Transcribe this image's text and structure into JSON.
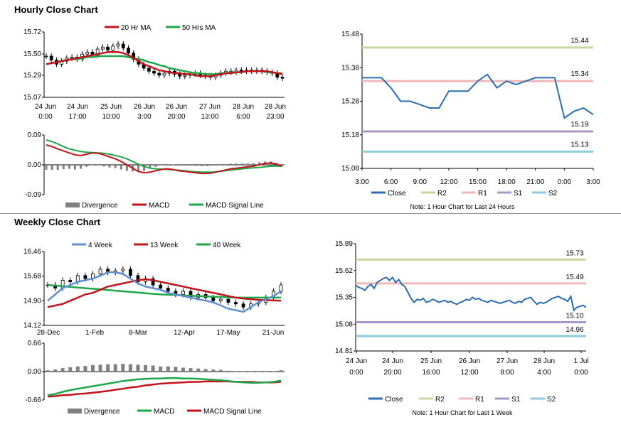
{
  "sections": {
    "hourly_title": "Hourly Close Chart",
    "weekly_title": "Weekly Close Chart"
  },
  "colors": {
    "ma20": "#c0141a",
    "ma50": "#1fa64a",
    "close": "#2a6db0",
    "r2": "#c6d9a0",
    "r1": "#f0b8b8",
    "s1": "#a898c8",
    "s2": "#8ccbdc",
    "divergence": "#808080",
    "ma4": "#5f8fd0"
  },
  "chart_data": [
    {
      "id": "hourly_price",
      "type": "candlestick",
      "legend": [
        "20 Hr MA",
        "50 Hrs MA"
      ],
      "y_ticks": [
        "15.72",
        "15.50",
        "15.29",
        "15.07"
      ],
      "ylim": [
        15.07,
        15.72
      ],
      "x_ticks": [
        [
          "24 Jun",
          "0:00"
        ],
        [
          "24 Jun",
          "17:00"
        ],
        [
          "25 Jun",
          "10:00"
        ],
        [
          "26 Jun",
          "3:00"
        ],
        [
          "26 Jun",
          "20:00"
        ],
        [
          "27 Jun",
          "13:00"
        ],
        [
          "28 Jun",
          "6:00"
        ],
        [
          "28 Jun",
          "23:00"
        ]
      ],
      "close": [
        15.48,
        15.44,
        15.4,
        15.43,
        15.46,
        15.47,
        15.45,
        15.5,
        15.52,
        15.49,
        15.55,
        15.57,
        15.54,
        15.58,
        15.6,
        15.56,
        15.51,
        15.45,
        15.4,
        15.36,
        15.33,
        15.31,
        15.29,
        15.31,
        15.33,
        15.3,
        15.28,
        15.29,
        15.3,
        15.31,
        15.29,
        15.28,
        15.27,
        15.29,
        15.31,
        15.33,
        15.32,
        15.34,
        15.33,
        15.34,
        15.33,
        15.34,
        15.33,
        15.32,
        15.31,
        15.27,
        15.26
      ],
      "ma20": [
        15.4,
        15.41,
        15.42,
        15.43,
        15.44,
        15.45,
        15.46,
        15.47,
        15.48,
        15.49,
        15.5,
        15.51,
        15.52,
        15.52,
        15.52,
        15.51,
        15.49,
        15.46,
        15.43,
        15.4,
        15.38,
        15.36,
        15.34,
        15.33,
        15.32,
        15.31,
        15.31,
        15.3,
        15.3,
        15.29,
        15.28,
        15.28,
        15.28,
        15.29,
        15.3,
        15.31,
        15.31,
        15.32,
        15.32,
        15.33,
        15.33,
        15.33,
        15.33,
        15.33,
        15.32,
        15.31,
        15.3
      ],
      "ma50": [
        15.4,
        15.41,
        15.42,
        15.43,
        15.44,
        15.45,
        15.45,
        15.46,
        15.47,
        15.47,
        15.48,
        15.48,
        15.48,
        15.48,
        15.48,
        15.48,
        15.47,
        15.46,
        15.45,
        15.44,
        15.42,
        15.41,
        15.39,
        15.38,
        15.36,
        15.35,
        15.34,
        15.33,
        15.32,
        15.31,
        15.31,
        15.3,
        15.3,
        15.3,
        15.31,
        15.31,
        15.32,
        15.32,
        15.32,
        15.33,
        15.33,
        15.33,
        15.33,
        15.32,
        15.32,
        15.31,
        15.31
      ]
    },
    {
      "id": "hourly_macd",
      "type": "line",
      "legend": [
        "Divergence",
        "MACD",
        "MACD Signal Line"
      ],
      "y_ticks": [
        "0.09",
        "0.00",
        "-0.09"
      ],
      "ylim": [
        -0.09,
        0.09
      ],
      "macd": [
        0.06,
        0.055,
        0.048,
        0.042,
        0.036,
        0.03,
        0.028,
        0.032,
        0.036,
        0.035,
        0.03,
        0.024,
        0.018,
        0.01,
        0.0,
        -0.01,
        -0.02,
        -0.024,
        -0.022,
        -0.018,
        -0.014,
        -0.012,
        -0.014,
        -0.018,
        -0.02,
        -0.022,
        -0.024,
        -0.026,
        -0.026,
        -0.024,
        -0.02,
        -0.016,
        -0.012,
        -0.01,
        -0.008,
        -0.006,
        -0.004,
        0.0,
        0.004,
        0.006,
        0.002,
        -0.004
      ],
      "signal": [
        0.075,
        0.07,
        0.063,
        0.055,
        0.048,
        0.044,
        0.04,
        0.038,
        0.037,
        0.036,
        0.035,
        0.032,
        0.028,
        0.024,
        0.018,
        0.01,
        0.002,
        -0.005,
        -0.01,
        -0.012,
        -0.013,
        -0.014,
        -0.015,
        -0.016,
        -0.018,
        -0.02,
        -0.021,
        -0.022,
        -0.022,
        -0.022,
        -0.02,
        -0.018,
        -0.016,
        -0.014,
        -0.012,
        -0.01,
        -0.009,
        -0.008,
        -0.006,
        -0.004,
        -0.004,
        -0.004
      ],
      "divergence": [
        -0.015,
        -0.015,
        -0.015,
        -0.013,
        -0.012,
        -0.014,
        -0.012,
        -0.006,
        -0.001,
        -0.001,
        -0.005,
        -0.008,
        -0.01,
        -0.014,
        -0.018,
        -0.02,
        -0.022,
        -0.019,
        -0.012,
        -0.006,
        -0.001,
        0.002,
        0.001,
        -0.002,
        -0.002,
        -0.002,
        -0.003,
        -0.004,
        -0.004,
        -0.002,
        0.0,
        0.002,
        0.004,
        0.004,
        0.004,
        0.004,
        0.005,
        0.008,
        0.01,
        0.01,
        0.006,
        0.0
      ]
    },
    {
      "id": "hourly_close",
      "type": "line",
      "legend": [
        "Close",
        "R2",
        "R1",
        "S1",
        "S2"
      ],
      "y_ticks": [
        "15.48",
        "15.38",
        "15.28",
        "15.18",
        "15.08"
      ],
      "ylim": [
        15.08,
        15.48
      ],
      "x_ticks": [
        "3:00",
        "6:00",
        "9:00",
        "12:00",
        "15:00",
        "18:00",
        "21:00",
        "0:00",
        "3:00"
      ],
      "levels": {
        "R2": 15.44,
        "R1": 15.34,
        "S1": 15.19,
        "S2": 15.13
      },
      "level_labels": [
        "15.44",
        "15.34",
        "15.19",
        "15.13"
      ],
      "close": [
        15.35,
        15.35,
        15.35,
        15.32,
        15.28,
        15.28,
        15.27,
        15.26,
        15.26,
        15.31,
        15.31,
        15.31,
        15.34,
        15.36,
        15.32,
        15.34,
        15.33,
        15.34,
        15.35,
        15.35,
        15.35,
        15.23,
        15.25,
        15.26,
        15.24
      ],
      "note": "Note: 1 Hour Chart for Last 24 Hours"
    },
    {
      "id": "weekly_price",
      "type": "candlestick",
      "legend": [
        "4 Week",
        "13 Week",
        "40 Week"
      ],
      "y_ticks": [
        "16.46",
        "15.68",
        "14.90",
        "14.12"
      ],
      "ylim": [
        14.12,
        16.46
      ],
      "x_ticks": [
        "28-Dec",
        "1-Feb",
        "8-Mar",
        "12-Apr",
        "17-May",
        "21-Jun"
      ],
      "close": [
        15.4,
        15.3,
        15.55,
        15.5,
        15.7,
        15.6,
        15.75,
        15.9,
        15.8,
        15.85,
        15.9,
        15.7,
        15.5,
        15.6,
        15.4,
        15.3,
        15.2,
        15.1,
        15.2,
        15.0,
        15.1,
        15.0,
        14.9,
        14.95,
        14.85,
        14.8,
        14.7,
        14.8,
        14.85,
        15.0,
        15.2,
        15.4
      ],
      "ma4": [
        14.9,
        15.1,
        15.3,
        15.4,
        15.5,
        15.55,
        15.6,
        15.7,
        15.8,
        15.8,
        15.75,
        15.6,
        15.45,
        15.35,
        15.3,
        15.25,
        15.15,
        15.1,
        15.05,
        15.0,
        14.95,
        14.9,
        14.85,
        14.75,
        14.65,
        14.6,
        14.55,
        14.7,
        14.85,
        14.95,
        15.05,
        15.2
      ],
      "ma13": [
        14.7,
        14.75,
        14.8,
        14.9,
        15.0,
        15.1,
        15.15,
        15.25,
        15.35,
        15.4,
        15.45,
        15.5,
        15.55,
        15.58,
        15.55,
        15.5,
        15.45,
        15.4,
        15.35,
        15.3,
        15.25,
        15.2,
        15.15,
        15.1,
        15.05,
        15.0,
        14.97,
        14.95,
        14.93,
        14.92,
        14.91,
        14.9
      ],
      "ma40": [
        15.4,
        15.38,
        15.36,
        15.34,
        15.32,
        15.3,
        15.28,
        15.26,
        15.24,
        15.22,
        15.2,
        15.18,
        15.16,
        15.14,
        15.12,
        15.1,
        15.09,
        15.08,
        15.07,
        15.06,
        15.05,
        15.04,
        15.03,
        15.02,
        15.01,
        15.0,
        15.0,
        15.0,
        15.0,
        15.0,
        15.0,
        15.0
      ]
    },
    {
      "id": "weekly_macd",
      "type": "line",
      "legend": [
        "Divergence",
        "MACD",
        "MACD Signal Line"
      ],
      "y_ticks": [
        "0.66",
        "0.00",
        "-0.66"
      ],
      "ylim": [
        -0.66,
        0.66
      ],
      "macd": [
        -0.55,
        -0.52,
        -0.47,
        -0.43,
        -0.4,
        -0.37,
        -0.34,
        -0.31,
        -0.28,
        -0.25,
        -0.22,
        -0.2,
        -0.18,
        -0.17,
        -0.16,
        -0.16,
        -0.15,
        -0.15,
        -0.16,
        -0.16,
        -0.17,
        -0.18,
        -0.19,
        -0.2,
        -0.22,
        -0.24,
        -0.25,
        -0.26,
        -0.26,
        -0.25,
        -0.24,
        -0.21
      ],
      "signal": [
        -0.58,
        -0.57,
        -0.55,
        -0.54,
        -0.52,
        -0.51,
        -0.49,
        -0.47,
        -0.45,
        -0.42,
        -0.4,
        -0.37,
        -0.35,
        -0.32,
        -0.3,
        -0.28,
        -0.27,
        -0.26,
        -0.25,
        -0.24,
        -0.24,
        -0.23,
        -0.23,
        -0.23,
        -0.23,
        -0.24,
        -0.24,
        -0.24,
        -0.25,
        -0.25,
        -0.25,
        -0.24
      ],
      "divergence": [
        0.03,
        0.05,
        0.08,
        0.1,
        0.12,
        0.13,
        0.15,
        0.16,
        0.17,
        0.17,
        0.18,
        0.17,
        0.16,
        0.15,
        0.14,
        0.12,
        0.12,
        0.11,
        0.09,
        0.08,
        0.07,
        0.06,
        0.05,
        0.04,
        0.02,
        0.01,
        0.0,
        -0.01,
        0.0,
        0.0,
        0.01,
        0.03
      ]
    },
    {
      "id": "weekly_close",
      "type": "line",
      "legend": [
        "Close",
        "R2",
        "R1",
        "S1",
        "S2"
      ],
      "y_ticks": [
        "15.89",
        "15.62",
        "15.35",
        "15.08",
        "14.81"
      ],
      "ylim": [
        14.81,
        15.89
      ],
      "x_ticks": [
        [
          "24 Jun",
          "0:00"
        ],
        [
          "24 Jun",
          "20:00"
        ],
        [
          "25 Jun",
          "16:00"
        ],
        [
          "26 Jun",
          "12:00"
        ],
        [
          "27 Jun",
          "8:00"
        ],
        [
          "28 Jun",
          "4:00"
        ],
        [
          "1 Jul",
          "0:00"
        ]
      ],
      "levels": {
        "R2": 15.73,
        "R1": 15.49,
        "S1": 15.1,
        "S2": 14.96
      },
      "level_labels": [
        "15.73",
        "15.49",
        "15.10",
        "14.96"
      ],
      "close": [
        15.47,
        15.45,
        15.44,
        15.42,
        15.46,
        15.48,
        15.44,
        15.5,
        15.52,
        15.54,
        15.55,
        15.52,
        15.55,
        15.5,
        15.53,
        15.48,
        15.46,
        15.4,
        15.34,
        15.3,
        15.33,
        15.32,
        15.34,
        15.3,
        15.31,
        15.33,
        15.32,
        15.3,
        15.31,
        15.32,
        15.3,
        15.31,
        15.29,
        15.28,
        15.3,
        15.31,
        15.33,
        15.32,
        15.35,
        15.33,
        15.34,
        15.32,
        15.31,
        15.3,
        15.32,
        15.31,
        15.3,
        15.29,
        15.3,
        15.31,
        15.32,
        15.3,
        15.29,
        15.31,
        15.3,
        15.33,
        15.34,
        15.35,
        15.31,
        15.28,
        15.3,
        15.29,
        15.3,
        15.32,
        15.34,
        15.35,
        15.36,
        15.34,
        15.33,
        15.31,
        15.36,
        15.22,
        15.25,
        15.26,
        15.27,
        15.25
      ],
      "note": "Note: 1 Hour Chart for Last 1 Week"
    }
  ]
}
